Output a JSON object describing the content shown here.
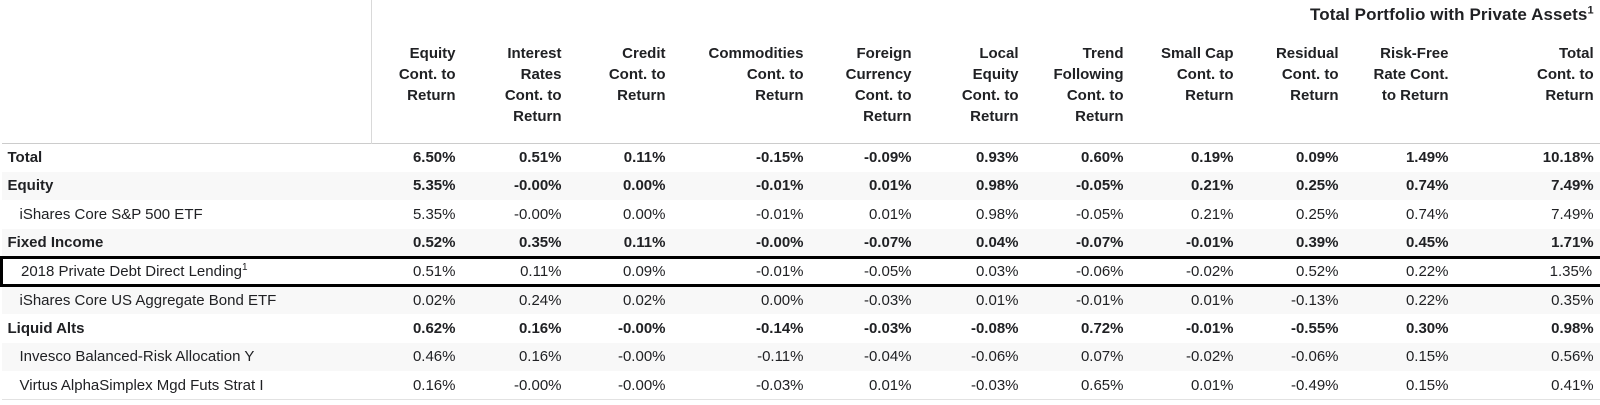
{
  "title": {
    "text": "Total Portfolio with Private Assets",
    "superscript": "1"
  },
  "colors": {
    "text": "#202124",
    "background": "#ffffff",
    "row_stripe": "#f8f8f8",
    "grid_line": "#cccccc",
    "header_divider": "#d9d9d9",
    "highlight_box": "#000000"
  },
  "chart_data": {
    "type": "table",
    "title": "Total Portfolio with Private Assets¹",
    "columns": [
      {
        "id": "equity",
        "label": "Equity Cont. to Return",
        "lines": [
          "Equity",
          "Cont. to",
          "Return"
        ]
      },
      {
        "id": "interest-rates",
        "label": "Interest Rates Cont. to Return",
        "lines": [
          "Interest",
          "Rates",
          "Cont. to",
          "Return"
        ]
      },
      {
        "id": "credit",
        "label": "Credit Cont. to Return",
        "lines": [
          "Credit",
          "Cont. to",
          "Return"
        ]
      },
      {
        "id": "commodities",
        "label": "Commodities Cont. to Return",
        "lines": [
          "Commodities",
          "Cont. to",
          "Return"
        ]
      },
      {
        "id": "foreign-currency",
        "label": "Foreign Currency Cont. to Return",
        "lines": [
          "Foreign",
          "Currency",
          "Cont. to",
          "Return"
        ]
      },
      {
        "id": "local-equity",
        "label": "Local Equity Cont. to Return",
        "lines": [
          "Local",
          "Equity",
          "Cont. to",
          "Return"
        ]
      },
      {
        "id": "trend-following",
        "label": "Trend Following Cont. to Return",
        "lines": [
          "Trend",
          "Following",
          "Cont. to",
          "Return"
        ]
      },
      {
        "id": "small-cap",
        "label": "Small Cap Cont. to Return",
        "lines": [
          "Small Cap",
          "Cont. to",
          "Return"
        ]
      },
      {
        "id": "residual",
        "label": "Residual Cont. to Return",
        "lines": [
          "Residual",
          "Cont. to",
          "Return"
        ]
      },
      {
        "id": "risk-free-rate",
        "label": "Risk-Free Rate Cont. to Return",
        "lines": [
          "Risk-Free",
          "Rate Cont.",
          "to Return"
        ]
      },
      {
        "id": "total",
        "label": "Total Cont. to Return",
        "lines": [
          "Total",
          "Cont. to",
          "Return"
        ]
      }
    ],
    "rows": [
      {
        "label": "Total",
        "sup": "",
        "style": "group",
        "boxed": false,
        "values": [
          "6.50%",
          "0.51%",
          "0.11%",
          "-0.15%",
          "-0.09%",
          "0.93%",
          "0.60%",
          "0.19%",
          "0.09%",
          "1.49%",
          "10.18%"
        ]
      },
      {
        "label": "Equity",
        "sup": "",
        "style": "group",
        "boxed": false,
        "values": [
          "5.35%",
          "-0.00%",
          "0.00%",
          "-0.01%",
          "0.01%",
          "0.98%",
          "-0.05%",
          "0.21%",
          "0.25%",
          "0.74%",
          "7.49%"
        ]
      },
      {
        "label": "iShares Core S&P 500 ETF",
        "sup": "",
        "style": "child",
        "boxed": false,
        "values": [
          "5.35%",
          "-0.00%",
          "0.00%",
          "-0.01%",
          "0.01%",
          "0.98%",
          "-0.05%",
          "0.21%",
          "0.25%",
          "0.74%",
          "7.49%"
        ]
      },
      {
        "label": "Fixed Income",
        "sup": "",
        "style": "group",
        "boxed": false,
        "values": [
          "0.52%",
          "0.35%",
          "0.11%",
          "-0.00%",
          "-0.07%",
          "0.04%",
          "-0.07%",
          "-0.01%",
          "0.39%",
          "0.45%",
          "1.71%"
        ]
      },
      {
        "label": "2018 Private Debt Direct Lending",
        "sup": "1",
        "style": "child",
        "boxed": true,
        "values": [
          "0.51%",
          "0.11%",
          "0.09%",
          "-0.01%",
          "-0.05%",
          "0.03%",
          "-0.06%",
          "-0.02%",
          "0.52%",
          "0.22%",
          "1.35%"
        ]
      },
      {
        "label": "iShares Core US Aggregate Bond ETF",
        "sup": "",
        "style": "child",
        "boxed": false,
        "values": [
          "0.02%",
          "0.24%",
          "0.02%",
          "0.00%",
          "-0.03%",
          "0.01%",
          "-0.01%",
          "0.01%",
          "-0.13%",
          "0.22%",
          "0.35%"
        ]
      },
      {
        "label": "Liquid Alts",
        "sup": "",
        "style": "group",
        "boxed": false,
        "values": [
          "0.62%",
          "0.16%",
          "-0.00%",
          "-0.14%",
          "-0.03%",
          "-0.08%",
          "0.72%",
          "-0.01%",
          "-0.55%",
          "0.30%",
          "0.98%"
        ]
      },
      {
        "label": "Invesco Balanced-Risk Allocation Y",
        "sup": "",
        "style": "child",
        "boxed": false,
        "values": [
          "0.46%",
          "0.16%",
          "-0.00%",
          "-0.11%",
          "-0.04%",
          "-0.06%",
          "0.07%",
          "-0.02%",
          "-0.06%",
          "0.15%",
          "0.56%"
        ]
      },
      {
        "label": "Virtus AlphaSimplex Mgd Futs Strat I",
        "sup": "",
        "style": "child",
        "boxed": false,
        "values": [
          "0.16%",
          "-0.00%",
          "-0.00%",
          "-0.03%",
          "0.01%",
          "-0.03%",
          "0.65%",
          "0.01%",
          "-0.49%",
          "0.15%",
          "0.41%"
        ]
      }
    ]
  }
}
